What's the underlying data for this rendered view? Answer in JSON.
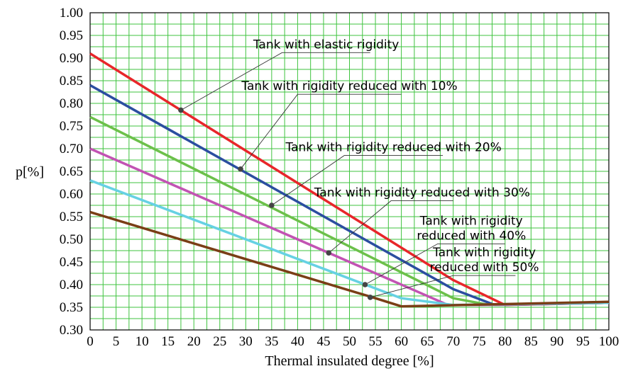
{
  "chart_data": {
    "type": "line",
    "xlabel": "Thermal insulated degree [%]",
    "ylabel": "p[%]",
    "xlim": [
      0,
      100
    ],
    "ylim": [
      0.3,
      1.0
    ],
    "xticks": [
      "0",
      "5",
      "10",
      "15",
      "20",
      "25",
      "30",
      "35",
      "40",
      "45",
      "50",
      "55",
      "60",
      "65",
      "70",
      "75",
      "80",
      "85",
      "90",
      "95",
      "100"
    ],
    "yticks": [
      "0.30",
      "0.35",
      "0.40",
      "0.45",
      "0.50",
      "0.55",
      "0.60",
      "0.65",
      "0.70",
      "0.75",
      "0.80",
      "0.85",
      "0.90",
      "0.95",
      "1.00"
    ],
    "grid": true,
    "colors": [
      "#e8262a",
      "#2b4ea0",
      "#6cc04a",
      "#c253b3",
      "#66d1e3",
      "#7a3e16"
    ],
    "series": [
      {
        "x": [
          0,
          70,
          80,
          100
        ],
        "y": [
          0.91,
          0.41,
          0.355,
          0.36
        ]
      },
      {
        "x": [
          0,
          70,
          78,
          100
        ],
        "y": [
          0.84,
          0.39,
          0.355,
          0.36
        ]
      },
      {
        "x": [
          0,
          70,
          77,
          100
        ],
        "y": [
          0.77,
          0.37,
          0.355,
          0.36
        ]
      },
      {
        "x": [
          0,
          69,
          76,
          100
        ],
        "y": [
          0.7,
          0.355,
          0.355,
          0.36
        ]
      },
      {
        "x": [
          0,
          60,
          70,
          100
        ],
        "y": [
          0.63,
          0.37,
          0.355,
          0.36
        ]
      },
      {
        "x": [
          0,
          55,
          60,
          100
        ],
        "y": [
          0.56,
          0.37,
          0.352,
          0.362
        ]
      }
    ],
    "annotations": [
      {
        "lines": [
          "Tank with elastic rigidity"
        ],
        "point": [
          17.5,
          0.785
        ],
        "elbow": [
          37,
          0.912
        ],
        "line_end": [
          54,
          0.912
        ]
      },
      {
        "lines": [
          "Tank with rigidity reduced with 10%"
        ],
        "point": [
          29,
          0.655
        ],
        "elbow": [
          40,
          0.82
        ],
        "line_end": [
          60,
          0.82
        ]
      },
      {
        "lines": [
          "Tank with rigidity reduced with 20%"
        ],
        "point": [
          35,
          0.575
        ],
        "elbow": [
          49,
          0.685
        ],
        "line_end": [
          68,
          0.685
        ]
      },
      {
        "lines": [
          "Tank with rigidity reduced with 30%"
        ],
        "point": [
          46,
          0.47
        ],
        "elbow": [
          58,
          0.585
        ],
        "line_end": [
          70,
          0.585
        ]
      },
      {
        "lines": [
          "Tank with rigidity",
          "reduced with 40%"
        ],
        "point": [
          53,
          0.4
        ],
        "elbow": [
          67,
          0.49
        ],
        "line_end": [
          80,
          0.49
        ]
      },
      {
        "lines": [
          "Tank with rigidity",
          "reduced with 50%"
        ],
        "point": [
          54,
          0.372
        ],
        "elbow": [
          70,
          0.42
        ],
        "line_end": [
          82,
          0.42
        ]
      }
    ]
  }
}
